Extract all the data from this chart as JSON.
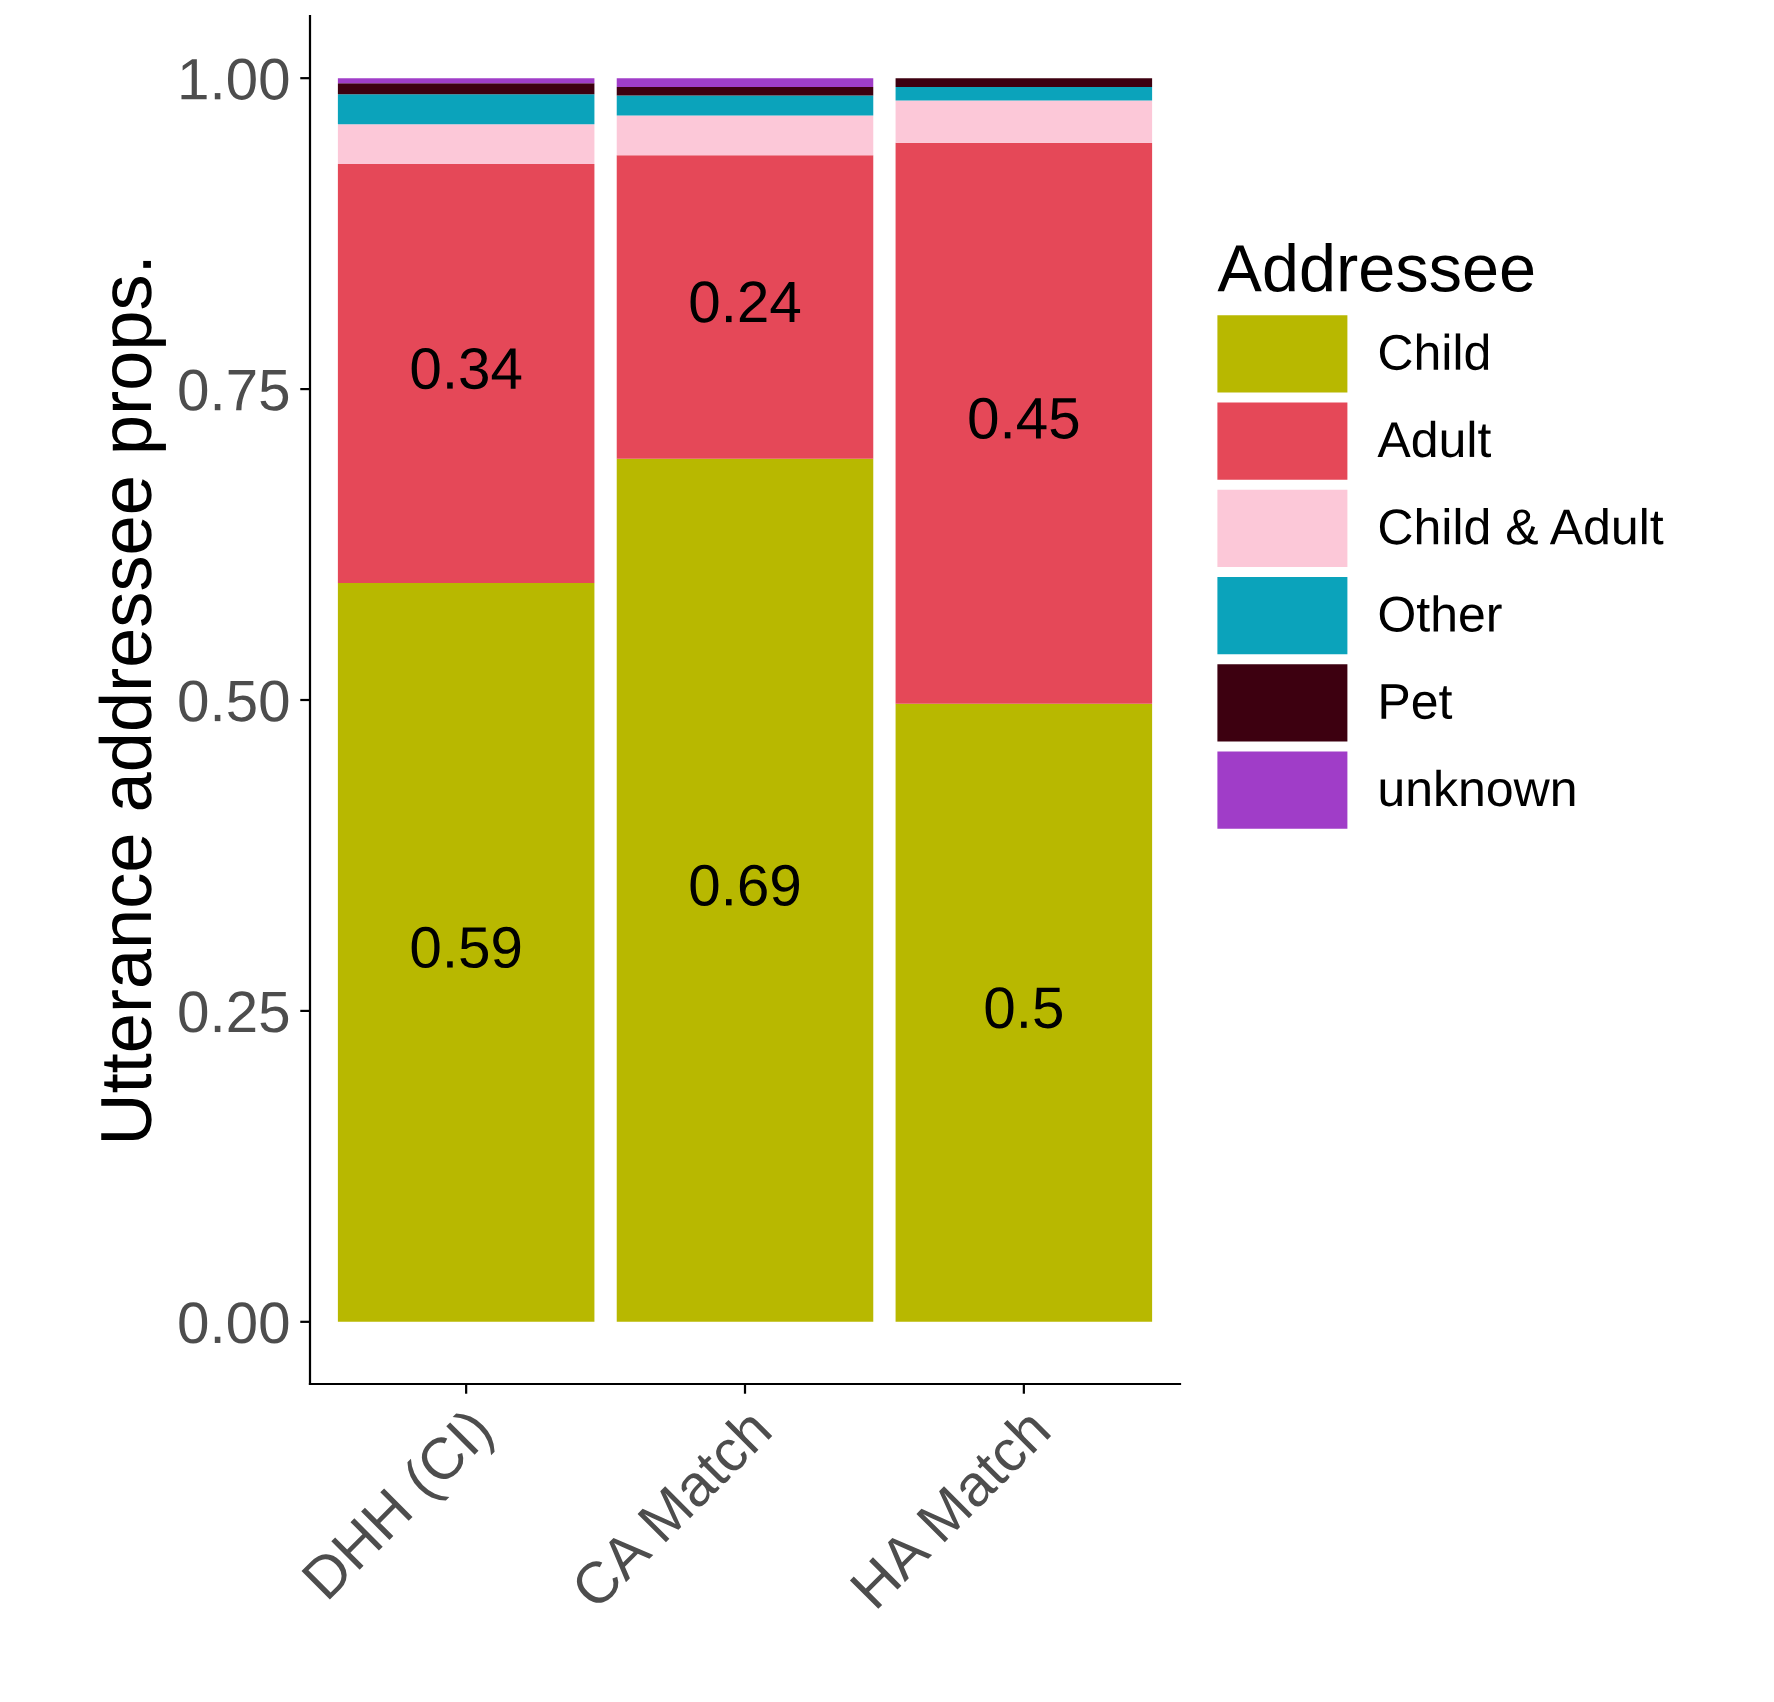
{
  "chart_data": {
    "type": "bar",
    "stacked": true,
    "ylabel": "Utterance addressee props.",
    "legend_title": "Addressee",
    "legend": "right",
    "categories": [
      "DHH (CI)",
      "CA Match",
      "HA Match"
    ],
    "ylim": [
      -0.05,
      1.05
    ],
    "yticks": [
      {
        "value": 0,
        "label": "0.00"
      },
      {
        "value": 0.25,
        "label": "0.25"
      },
      {
        "value": 0.5,
        "label": "0.50"
      },
      {
        "value": 0.75,
        "label": "0.75"
      },
      {
        "value": 1,
        "label": "1.00"
      }
    ],
    "grid": false,
    "series": [
      {
        "name": "Child",
        "color": "#b8b800",
        "values": [
          0.594,
          0.694,
          0.497
        ],
        "value_labels": [
          "0.59",
          "0.69",
          "0.5"
        ]
      },
      {
        "name": "Adult",
        "color": "#e54858",
        "values": [
          0.337,
          0.244,
          0.451
        ],
        "value_labels": [
          "0.34",
          "0.24",
          "0.45"
        ]
      },
      {
        "name": "Child & Adult",
        "color": "#fcc8d8",
        "values": [
          0.032,
          0.032,
          0.034
        ]
      },
      {
        "name": "Other",
        "color": "#0ba3bb",
        "values": [
          0.024,
          0.016,
          0.011
        ]
      },
      {
        "name": "Pet",
        "color": "#3d0010",
        "values": [
          0.009,
          0.007,
          0.007
        ]
      },
      {
        "name": "unknown",
        "color": "#a03dc8",
        "values": [
          0.004,
          0.007,
          0.0
        ]
      }
    ]
  }
}
